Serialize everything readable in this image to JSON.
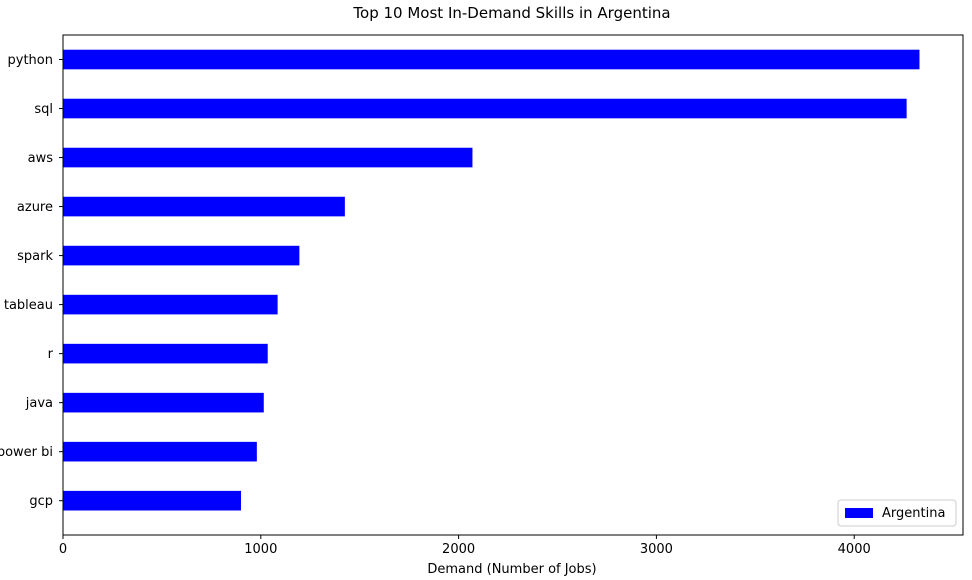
{
  "chart_data": {
    "type": "bar",
    "orientation": "horizontal",
    "title": "Top 10 Most In-Demand Skills in Argentina",
    "xlabel": "Demand (Number of Jobs)",
    "ylabel": "",
    "categories": [
      "python",
      "sql",
      "aws",
      "azure",
      "spark",
      "tableau",
      "r",
      "java",
      "power bi",
      "gcp"
    ],
    "series": [
      {
        "name": "Argentina",
        "color": "#0000ff",
        "values": [
          4330,
          4265,
          2070,
          1425,
          1195,
          1085,
          1035,
          1015,
          980,
          900
        ]
      }
    ],
    "xlim": [
      0,
      4550
    ],
    "xticks": [
      0,
      1000,
      2000,
      3000,
      4000
    ],
    "grid": false,
    "legend": "bottom-right"
  }
}
